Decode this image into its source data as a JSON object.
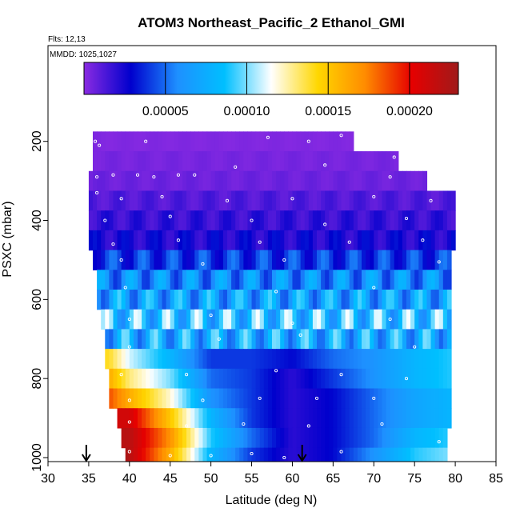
{
  "chart_data": {
    "type": "heatmap",
    "title": "ATOM3 Northeast_Pacific_2 Ethanol_GMI",
    "flights_label": "Flts: 12,13",
    "dates_label": "MMDD: 1025,1027",
    "xlabel": "Latitude (deg N)",
    "ylabel": "PSXC (mbar)",
    "xlim": [
      30,
      85
    ],
    "ylim": [
      1000,
      150
    ],
    "x_ticks": [
      30,
      35,
      40,
      45,
      50,
      55,
      60,
      65,
      70,
      75,
      80,
      85
    ],
    "y_ticks": [
      200,
      400,
      600,
      800,
      1000
    ],
    "colorbar": {
      "range": [
        0,
        0.00023
      ],
      "tick_values": [
        5e-05,
        0.0001,
        0.00015,
        0.0002
      ],
      "tick_labels": [
        "0.00005",
        "0.00010",
        "0.00015",
        "0.00020"
      ],
      "colors": [
        "#8a2be2",
        "#0000cd",
        "#1e90ff",
        "#00bfff",
        "#ffffff",
        "#ffd700",
        "#ff8c00",
        "#e60000",
        "#a01a1a"
      ]
    },
    "arrows_at_latitude": [
      34.7,
      61.2
    ],
    "pressure_levels": [
      200,
      250,
      300,
      350,
      400,
      450,
      500,
      550,
      600,
      650,
      700,
      750,
      800,
      850,
      900,
      950,
      1000
    ],
    "bands": [
      {
        "pressure": 200,
        "lat_min": 35.5,
        "lat_max": 67.5,
        "mean": 2e-06
      },
      {
        "pressure": 250,
        "lat_min": 35.5,
        "lat_max": 73.0,
        "mean": 4e-06
      },
      {
        "pressure": 300,
        "lat_min": 35.0,
        "lat_max": 76.5,
        "mean": 6e-06
      },
      {
        "pressure": 350,
        "lat_min": 35.0,
        "lat_max": 80.0,
        "mean": 1.2e-05
      },
      {
        "pressure": 400,
        "lat_min": 35.0,
        "lat_max": 80.0,
        "mean": 1.8e-05
      },
      {
        "pressure": 450,
        "lat_min": 35.0,
        "lat_max": 80.0,
        "mean": 2.4e-05
      },
      {
        "pressure": 500,
        "lat_min": 35.5,
        "lat_max": 79.5,
        "mean": 4e-05
      },
      {
        "pressure": 550,
        "lat_min": 36.0,
        "lat_max": 79.5,
        "mean": 6e-05
      },
      {
        "pressure": 600,
        "lat_min": 36.0,
        "lat_max": 79.5,
        "mean": 7e-05
      },
      {
        "pressure": 650,
        "lat_min": 36.5,
        "lat_max": 79.5,
        "mean": 8.5e-05
      },
      {
        "pressure": 700,
        "lat_min": 37.0,
        "lat_max": 79.5,
        "mean": 7.5e-05
      },
      {
        "pressure": 750,
        "lat_min": 37.0,
        "lat_max": 79.5,
        "mean": 7e-05
      },
      {
        "pressure": 800,
        "lat_min": 37.5,
        "lat_max": 79.5,
        "mean": 6.5e-05
      },
      {
        "pressure": 850,
        "lat_min": 37.5,
        "lat_max": 79.5,
        "mean": 6e-05
      },
      {
        "pressure": 900,
        "lat_min": 38.5,
        "lat_max": 79.5,
        "mean": 7e-05
      },
      {
        "pressure": 950,
        "lat_min": 39.0,
        "lat_max": 79.0,
        "mean": 8e-05
      },
      {
        "pressure": 1000,
        "lat_min": 39.5,
        "lat_max": 79.0,
        "mean": 8.5e-05
      }
    ],
    "lower_layer_values_by_latitude": [
      {
        "pressure": 750,
        "lats": [
          37.5,
          40,
          45,
          50,
          55,
          60,
          65,
          70,
          75,
          79.5
        ],
        "values": [
          0.00014,
          0.00011,
          8e-05,
          4e-05,
          4e-05,
          3e-05,
          5e-05,
          6e-05,
          8e-05,
          9e-05
        ]
      },
      {
        "pressure": 800,
        "lats": [
          37.5,
          40,
          45,
          50,
          55,
          60,
          65,
          70,
          75,
          79.5
        ],
        "values": [
          0.00016,
          0.00013,
          0.0001,
          5e-05,
          4e-05,
          2e-05,
          4e-05,
          6e-05,
          8e-05,
          9e-05
        ]
      },
      {
        "pressure": 850,
        "lats": [
          37.5,
          40,
          45,
          50,
          55,
          60,
          65,
          70,
          75,
          79.5
        ],
        "values": [
          0.000185,
          0.00016,
          0.00012,
          6e-05,
          4e-05,
          2e-05,
          3e-05,
          5e-05,
          7e-05,
          8e-05
        ]
      },
      {
        "pressure": 900,
        "lats": [
          38.5,
          40,
          45,
          50,
          55,
          60,
          65,
          70,
          75,
          79.5
        ],
        "values": [
          0.00021,
          0.00021,
          0.00015,
          8e-05,
          4e-05,
          2e-05,
          3e-05,
          5e-05,
          7e-05,
          8e-05
        ]
      },
      {
        "pressure": 950,
        "lats": [
          39,
          40,
          45,
          50,
          55,
          60,
          65,
          70,
          75,
          79
        ],
        "values": [
          0.00022,
          0.00022,
          0.00017,
          9e-05,
          5e-05,
          2e-05,
          3e-05,
          5e-05,
          8e-05,
          9e-05
        ]
      },
      {
        "pressure": 1000,
        "lats": [
          39.5,
          40,
          45,
          50,
          55,
          60,
          65,
          70,
          75,
          79
        ],
        "values": [
          0.00023,
          0.00022,
          0.00016,
          8e-05,
          4e-05,
          2e-05,
          3e-05,
          6e-05,
          9e-05,
          0.0001
        ]
      }
    ],
    "observations": [
      {
        "lat": 35.8,
        "p": 200
      },
      {
        "lat": 36.3,
        "p": 210
      },
      {
        "lat": 42.0,
        "p": 200
      },
      {
        "lat": 57.0,
        "p": 190
      },
      {
        "lat": 62.0,
        "p": 200
      },
      {
        "lat": 66.0,
        "p": 185
      },
      {
        "lat": 69.0,
        "p": 220
      },
      {
        "lat": 72.5,
        "p": 240
      },
      {
        "lat": 36.0,
        "p": 290
      },
      {
        "lat": 38.0,
        "p": 285
      },
      {
        "lat": 41.0,
        "p": 285
      },
      {
        "lat": 43.0,
        "p": 290
      },
      {
        "lat": 46.0,
        "p": 285
      },
      {
        "lat": 48.0,
        "p": 285
      },
      {
        "lat": 53.0,
        "p": 265
      },
      {
        "lat": 64.0,
        "p": 260
      },
      {
        "lat": 72.0,
        "p": 290
      },
      {
        "lat": 36.0,
        "p": 330
      },
      {
        "lat": 39.0,
        "p": 345
      },
      {
        "lat": 44.0,
        "p": 340
      },
      {
        "lat": 52.0,
        "p": 350
      },
      {
        "lat": 60.0,
        "p": 345
      },
      {
        "lat": 70.0,
        "p": 340
      },
      {
        "lat": 77.0,
        "p": 350
      },
      {
        "lat": 37.0,
        "p": 400
      },
      {
        "lat": 45.0,
        "p": 390
      },
      {
        "lat": 55.0,
        "p": 400
      },
      {
        "lat": 64.0,
        "p": 410
      },
      {
        "lat": 74.0,
        "p": 395
      },
      {
        "lat": 38.0,
        "p": 460
      },
      {
        "lat": 46.0,
        "p": 450
      },
      {
        "lat": 56.0,
        "p": 455
      },
      {
        "lat": 67.0,
        "p": 455
      },
      {
        "lat": 76.0,
        "p": 450
      },
      {
        "lat": 39.0,
        "p": 500
      },
      {
        "lat": 49.0,
        "p": 510
      },
      {
        "lat": 59.0,
        "p": 500
      },
      {
        "lat": 78.0,
        "p": 505
      },
      {
        "lat": 39.5,
        "p": 570
      },
      {
        "lat": 58.0,
        "p": 580
      },
      {
        "lat": 70.0,
        "p": 570
      },
      {
        "lat": 40.0,
        "p": 650
      },
      {
        "lat": 50.0,
        "p": 640
      },
      {
        "lat": 60.0,
        "p": 660
      },
      {
        "lat": 72.0,
        "p": 650
      },
      {
        "lat": 40.0,
        "p": 720
      },
      {
        "lat": 51.0,
        "p": 700
      },
      {
        "lat": 61.0,
        "p": 690
      },
      {
        "lat": 75.0,
        "p": 720
      },
      {
        "lat": 39.0,
        "p": 790
      },
      {
        "lat": 47.0,
        "p": 790
      },
      {
        "lat": 58.0,
        "p": 780
      },
      {
        "lat": 66.0,
        "p": 790
      },
      {
        "lat": 74.0,
        "p": 800
      },
      {
        "lat": 40.0,
        "p": 855
      },
      {
        "lat": 49.0,
        "p": 855
      },
      {
        "lat": 56.0,
        "p": 850
      },
      {
        "lat": 63.0,
        "p": 850
      },
      {
        "lat": 70.0,
        "p": 850
      },
      {
        "lat": 40.0,
        "p": 910
      },
      {
        "lat": 47.0,
        "p": 920
      },
      {
        "lat": 54.0,
        "p": 915
      },
      {
        "lat": 62.0,
        "p": 920
      },
      {
        "lat": 71.0,
        "p": 915
      },
      {
        "lat": 40.0,
        "p": 985
      },
      {
        "lat": 45.0,
        "p": 995
      },
      {
        "lat": 50.0,
        "p": 995
      },
      {
        "lat": 55.0,
        "p": 990
      },
      {
        "lat": 59.0,
        "p": 1000
      },
      {
        "lat": 66.0,
        "p": 985
      },
      {
        "lat": 78.0,
        "p": 960
      }
    ]
  }
}
